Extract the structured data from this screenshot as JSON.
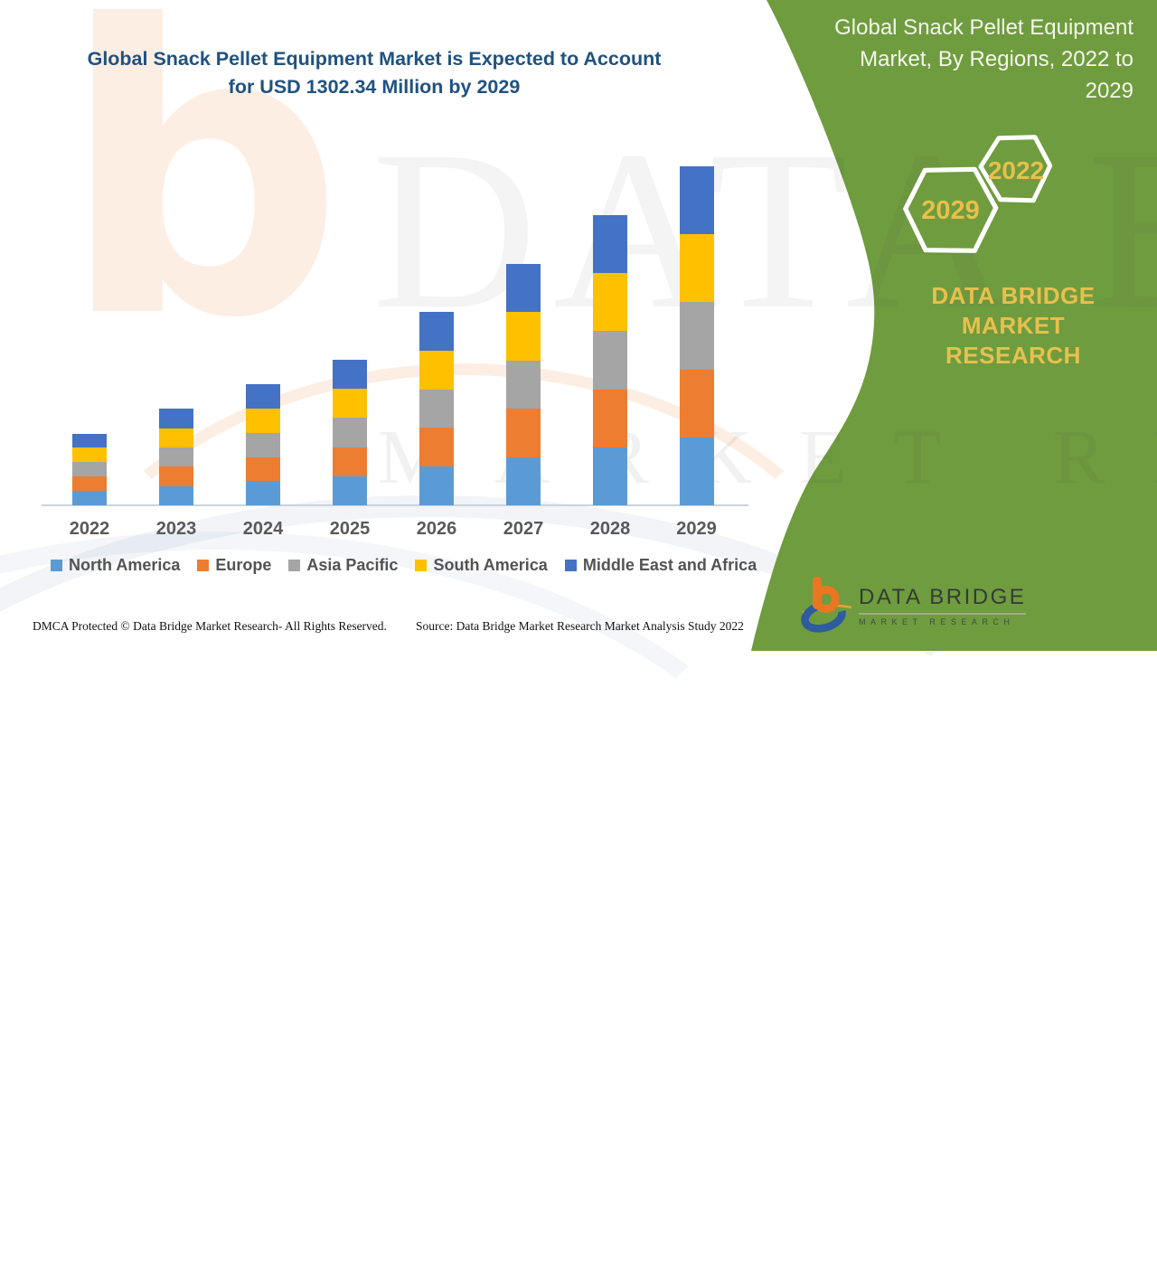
{
  "header": {
    "title_lines": [
      "Global Snack Pellet Equipment Market is Expected to Account",
      "for USD 1302.34 Million by 2029"
    ],
    "title_color": "#20527F"
  },
  "side_panel": {
    "background_color": "#6F9C3E",
    "title_lines": [
      "Global Snack Pellet Equipment",
      "Market, By Regions, 2022 to",
      "2029"
    ],
    "hexagon_badges": [
      "2029",
      "2022"
    ],
    "brand_lines": [
      "DATA BRIDGE MARKET",
      "RESEARCH"
    ],
    "accent_gold": "#E8C04E"
  },
  "chart_data": {
    "type": "bar",
    "stacked": true,
    "title": "Global Snack Pellet Equipment Market, By Regions, 2022 to 2029",
    "unit": "USD Million",
    "categories": [
      "2022",
      "2023",
      "2024",
      "2025",
      "2026",
      "2027",
      "2028",
      "2029"
    ],
    "series": [
      {
        "name": "North America",
        "color": "#5B9BD5",
        "values": [
          55.2,
          74.1,
          92.9,
          111.8,
          148.6,
          185.8,
          222.9,
          260.5
        ]
      },
      {
        "name": "Europe",
        "color": "#ED7D31",
        "values": [
          55.2,
          74.1,
          92.9,
          111.8,
          148.6,
          185.8,
          222.9,
          260.5
        ]
      },
      {
        "name": "Asia Pacific",
        "color": "#A5A5A5",
        "values": [
          55.2,
          74.1,
          92.9,
          111.8,
          148.6,
          185.8,
          222.9,
          260.5
        ]
      },
      {
        "name": "South America",
        "color": "#FFC000",
        "values": [
          55.2,
          74.1,
          92.9,
          111.8,
          148.6,
          185.8,
          222.9,
          260.5
        ]
      },
      {
        "name": "Middle East and Africa",
        "color": "#4472C4",
        "values": [
          55.2,
          74.1,
          92.9,
          111.8,
          148.6,
          185.8,
          222.9,
          260.5
        ]
      }
    ],
    "totals_estimated": [
      276,
      371,
      465,
      559,
      743,
      929,
      1115,
      1302.34
    ],
    "stated_value_2029": "USD 1302.34 Million",
    "y_axis_visible": false,
    "gridlines": false,
    "legend_position": "bottom",
    "note": "No value axis shown; per-region values estimated from equal stacked segment heights scaled so 2029 total equals 1302.34."
  },
  "footer": {
    "dmca": "DMCA Protected © Data Bridge Market Research- All Rights Reserved.",
    "source": "Source: Data Bridge Market Research Market Analysis Study 2022"
  },
  "logo": {
    "name_line": "DATA BRIDGE",
    "sub_line": "MARKET RESEARCH"
  },
  "watermark": {
    "row1": "DATA BRIDGE",
    "row2": "MARKET RESEARCH",
    "letter_b": "b"
  }
}
